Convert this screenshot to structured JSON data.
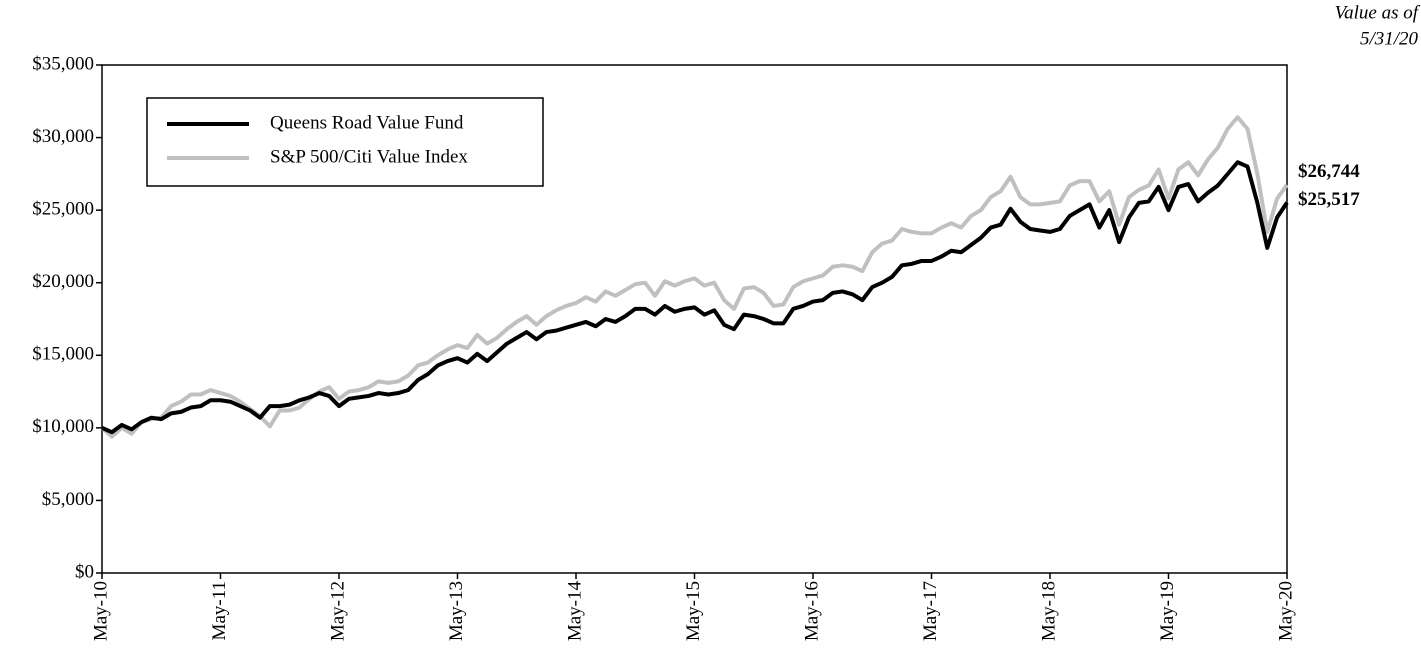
{
  "chart_data": {
    "type": "line",
    "annotation": [
      "Value as of",
      "5/31/20"
    ],
    "categories": [
      "May-10",
      null,
      null,
      null,
      null,
      null,
      null,
      null,
      null,
      null,
      null,
      null,
      "May-11",
      null,
      null,
      null,
      null,
      null,
      null,
      null,
      null,
      null,
      null,
      null,
      "May-12",
      null,
      null,
      null,
      null,
      null,
      null,
      null,
      null,
      null,
      null,
      null,
      "May-13",
      null,
      null,
      null,
      null,
      null,
      null,
      null,
      null,
      null,
      null,
      null,
      "May-14",
      null,
      null,
      null,
      null,
      null,
      null,
      null,
      null,
      null,
      null,
      null,
      "May-15",
      null,
      null,
      null,
      null,
      null,
      null,
      null,
      null,
      null,
      null,
      null,
      "May-16",
      null,
      null,
      null,
      null,
      null,
      null,
      null,
      null,
      null,
      null,
      null,
      "May-17",
      null,
      null,
      null,
      null,
      null,
      null,
      null,
      null,
      null,
      null,
      null,
      "May-18",
      null,
      null,
      null,
      null,
      null,
      null,
      null,
      null,
      null,
      null,
      null,
      "May-19",
      null,
      null,
      null,
      null,
      null,
      null,
      null,
      null,
      null,
      null,
      null,
      "May-20"
    ],
    "series": [
      {
        "name": "Queens Road Value Fund",
        "color": "#000000",
        "values": [
          10000,
          9700,
          10200,
          9900,
          10400,
          10700,
          10600,
          11000,
          11100,
          11400,
          11500,
          11900,
          11900,
          11800,
          11500,
          11200,
          10700,
          11500,
          11500,
          11600,
          11900,
          12100,
          12400,
          12200,
          11500,
          12000,
          12100,
          12200,
          12400,
          12300,
          12400,
          12600,
          13300,
          13700,
          14300,
          14600,
          14800,
          14500,
          15100,
          14600,
          15200,
          15800,
          16200,
          16600,
          16100,
          16600,
          16700,
          16900,
          17100,
          17300,
          17000,
          17500,
          17300,
          17700,
          18200,
          18200,
          17800,
          18400,
          18000,
          18200,
          18300,
          17800,
          18100,
          17100,
          16800,
          17800,
          17700,
          17500,
          17200,
          17200,
          18200,
          18400,
          18700,
          18800,
          19300,
          19400,
          19200,
          18800,
          19700,
          20000,
          20400,
          21200,
          21300,
          21500,
          21500,
          21800,
          22200,
          22100,
          22600,
          23100,
          23800,
          24000,
          25100,
          24200,
          23700,
          23600,
          23500,
          23700,
          24600,
          25000,
          25400,
          23800,
          25000,
          22800,
          24500,
          25500,
          25600,
          26600,
          25000,
          26600,
          26800,
          25600,
          26200,
          26700,
          27500,
          28300,
          28000,
          25500,
          22400,
          24500,
          25517
        ],
        "value_labels": [
          null,
          null,
          null,
          null,
          null,
          null,
          null,
          null,
          null,
          null,
          null,
          null,
          null,
          null,
          null,
          null,
          null,
          null,
          null,
          null,
          null,
          null,
          null,
          null,
          null,
          null,
          null,
          null,
          null,
          null,
          null,
          null,
          null,
          null,
          null,
          null,
          null,
          null,
          null,
          null,
          null,
          null,
          null,
          null,
          null,
          null,
          null,
          null,
          null,
          null,
          null,
          null,
          null,
          null,
          null,
          null,
          null,
          null,
          null,
          null,
          null,
          null,
          null,
          null,
          null,
          null,
          null,
          null,
          null,
          null,
          null,
          null,
          null,
          null,
          null,
          null,
          null,
          null,
          null,
          null,
          null,
          null,
          null,
          null,
          null,
          null,
          null,
          null,
          null,
          null,
          null,
          null,
          null,
          null,
          null,
          null,
          null,
          null,
          null,
          null,
          null,
          null,
          null,
          null,
          null,
          null,
          null,
          null,
          null,
          null,
          null,
          null,
          null,
          null,
          null,
          null,
          null,
          null,
          null,
          null,
          "$25,517"
        ]
      },
      {
        "name": "S&P 500/Citi Value Index",
        "color": "#c0c0c0",
        "values": [
          10000,
          9400,
          10000,
          9600,
          10400,
          10600,
          10700,
          11500,
          11800,
          12300,
          12300,
          12600,
          12400,
          12200,
          11800,
          11300,
          10800,
          10100,
          11200,
          11200,
          11400,
          12000,
          12500,
          12800,
          12000,
          12500,
          12600,
          12800,
          13200,
          13100,
          13200,
          13600,
          14300,
          14500,
          15000,
          15400,
          15700,
          15500,
          16400,
          15800,
          16200,
          16800,
          17300,
          17700,
          17100,
          17700,
          18100,
          18400,
          18600,
          19000,
          18700,
          19400,
          19100,
          19500,
          19900,
          20000,
          19100,
          20100,
          19800,
          20100,
          20300,
          19800,
          20000,
          18800,
          18200,
          19600,
          19700,
          19300,
          18400,
          18500,
          19700,
          20100,
          20300,
          20500,
          21100,
          21200,
          21100,
          20800,
          22100,
          22700,
          22900,
          23700,
          23500,
          23400,
          23400,
          23800,
          24100,
          23800,
          24600,
          25000,
          25900,
          26300,
          27300,
          25900,
          25400,
          25400,
          25500,
          25600,
          26700,
          27000,
          27000,
          25600,
          26300,
          24000,
          25900,
          26400,
          26700,
          27800,
          25800,
          27800,
          28300,
          27400,
          28500,
          29300,
          30600,
          31400,
          30600,
          27500,
          23500,
          25800,
          26744
        ],
        "value_labels": [
          null,
          null,
          null,
          null,
          null,
          null,
          null,
          null,
          null,
          null,
          null,
          null,
          null,
          null,
          null,
          null,
          null,
          null,
          null,
          null,
          null,
          null,
          null,
          null,
          null,
          null,
          null,
          null,
          null,
          null,
          null,
          null,
          null,
          null,
          null,
          null,
          null,
          null,
          null,
          null,
          null,
          null,
          null,
          null,
          null,
          null,
          null,
          null,
          null,
          null,
          null,
          null,
          null,
          null,
          null,
          null,
          null,
          null,
          null,
          null,
          null,
          null,
          null,
          null,
          null,
          null,
          null,
          null,
          null,
          null,
          null,
          null,
          null,
          null,
          null,
          null,
          null,
          null,
          null,
          null,
          null,
          null,
          null,
          null,
          null,
          null,
          null,
          null,
          null,
          null,
          null,
          null,
          null,
          null,
          null,
          null,
          null,
          null,
          null,
          null,
          null,
          null,
          null,
          null,
          null,
          null,
          null,
          null,
          null,
          null,
          null,
          null,
          null,
          null,
          null,
          null,
          null,
          null,
          null,
          null,
          "$26,744"
        ]
      }
    ],
    "ylim": [
      0,
      35000
    ],
    "yticks": [
      {
        "value": 0,
        "label": "$0"
      },
      {
        "value": 5000,
        "label": "$5,000"
      },
      {
        "value": 10000,
        "label": "$10,000"
      },
      {
        "value": 15000,
        "label": "$15,000"
      },
      {
        "value": 20000,
        "label": "$20,000"
      },
      {
        "value": 25000,
        "label": "$25,000"
      },
      {
        "value": 30000,
        "label": "$30,000"
      },
      {
        "value": 35000,
        "label": "$35,000"
      }
    ],
    "legend": "upper left"
  }
}
